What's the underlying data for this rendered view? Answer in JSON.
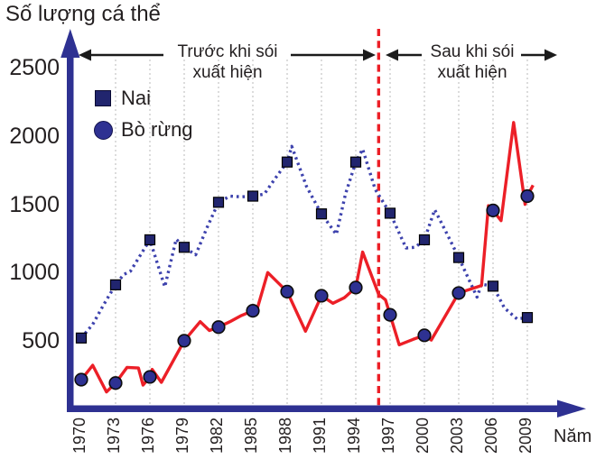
{
  "title": "Số lượng cá thể",
  "x_axis_label": "Năm",
  "legend": [
    {
      "label": "Nai",
      "marker": "square"
    },
    {
      "label": "Bò rừng",
      "marker": "circle"
    }
  ],
  "annotations": {
    "before": {
      "line1": "Trước khi sói",
      "line2": "xuất hiện"
    },
    "after": {
      "line1": "Sau khi sói",
      "line2": "xuất hiện"
    }
  },
  "colors": {
    "axis_blue": "#2e3192",
    "elk_dotted_blue": "#3d42ad",
    "square_marker": "#21256e",
    "circle_marker": "#2e3192",
    "red": "#ec1f27",
    "grid": "#c4c4c4",
    "text": "#231f20"
  },
  "chart_data": {
    "type": "line",
    "title": "Số lượng cá thể",
    "xlabel": "Năm",
    "ylabel": "Số lượng cá thể",
    "ylim": [
      0,
      2500
    ],
    "y_ticks": [
      500,
      1000,
      1500,
      2000,
      2500
    ],
    "x_ticks": [
      1970,
      1973,
      1976,
      1979,
      1982,
      1985,
      1988,
      1991,
      1994,
      1997,
      2000,
      2003,
      2006,
      2009
    ],
    "grid": "vertical-dotted",
    "legend_position": "top-left",
    "divider": {
      "x": 1996,
      "style": "red-dashed",
      "label_before": "Trước khi sói xuất hiện",
      "label_after": "Sau khi sói xuất hiện"
    },
    "series": [
      {
        "name": "Nai",
        "marker": "square",
        "line_style": "dotted",
        "color": "#3d42ad",
        "marker_years": [
          1970,
          1973,
          1976,
          1979,
          1982,
          1985,
          1988,
          1991,
          1994,
          1997,
          2000,
          2003,
          2006,
          2009
        ],
        "marker_values": [
          520,
          910,
          1240,
          1185,
          1515,
          1560,
          1810,
          1430,
          1810,
          1435,
          1240,
          1110,
          900,
          670
        ],
        "line_points": [
          [
            1970,
            520
          ],
          [
            1971,
            620
          ],
          [
            1972,
            770
          ],
          [
            1973,
            910
          ],
          [
            1973.7,
            985
          ],
          [
            1974.3,
            1010
          ],
          [
            1976,
            1240
          ],
          [
            1977.3,
            895
          ],
          [
            1978.3,
            1245
          ],
          [
            1979,
            1185
          ],
          [
            1980,
            1130
          ],
          [
            1981,
            1330
          ],
          [
            1982,
            1515
          ],
          [
            1983,
            1560
          ],
          [
            1984,
            1555
          ],
          [
            1985,
            1560
          ],
          [
            1986,
            1575
          ],
          [
            1987,
            1695
          ],
          [
            1988,
            1810
          ],
          [
            1988.4,
            1925
          ],
          [
            1989.7,
            1630
          ],
          [
            1991,
            1430
          ],
          [
            1992.3,
            1280
          ],
          [
            1993.1,
            1575
          ],
          [
            1994,
            1810
          ],
          [
            1994.6,
            1905
          ],
          [
            1995.7,
            1610
          ],
          [
            1997,
            1435
          ],
          [
            1998.4,
            1180
          ],
          [
            1999.2,
            1185
          ],
          [
            2000,
            1240
          ],
          [
            2000.9,
            1460
          ],
          [
            2002,
            1280
          ],
          [
            2003,
            1110
          ],
          [
            2004.6,
            820
          ],
          [
            2005,
            915
          ],
          [
            2006,
            900
          ],
          [
            2007,
            740
          ],
          [
            2008.1,
            660
          ],
          [
            2009,
            670
          ],
          [
            2009.4,
            690
          ]
        ]
      },
      {
        "name": "Bò rừng",
        "marker": "circle",
        "line_style": "solid",
        "color": "#ec1f27",
        "marker_years": [
          1970,
          1973,
          1976,
          1979,
          1982,
          1985,
          1988,
          1991,
          1994,
          1997,
          2000,
          2003,
          2006,
          2009
        ],
        "marker_values": [
          215,
          190,
          235,
          500,
          600,
          720,
          860,
          830,
          890,
          690,
          540,
          850,
          1455,
          1560
        ],
        "line_points": [
          [
            1970,
            215
          ],
          [
            1971,
            320
          ],
          [
            1972.2,
            125
          ],
          [
            1973,
            190
          ],
          [
            1974,
            305
          ],
          [
            1975,
            300
          ],
          [
            1975.4,
            175
          ],
          [
            1976,
            235
          ],
          [
            1976.2,
            290
          ],
          [
            1977,
            195
          ],
          [
            1979,
            500
          ],
          [
            1980.4,
            640
          ],
          [
            1981.2,
            575
          ],
          [
            1982,
            600
          ],
          [
            1983,
            640
          ],
          [
            1984,
            685
          ],
          [
            1985,
            720
          ],
          [
            1985.4,
            740
          ],
          [
            1986.3,
            1000
          ],
          [
            1988,
            860
          ],
          [
            1989.6,
            570
          ],
          [
            1991,
            830
          ],
          [
            1992,
            775
          ],
          [
            1993,
            815
          ],
          [
            1994,
            890
          ],
          [
            1994.6,
            1150
          ],
          [
            1996,
            840
          ],
          [
            1996.6,
            800
          ],
          [
            1997,
            690
          ],
          [
            1997.8,
            470
          ],
          [
            1999,
            510
          ],
          [
            2000,
            540
          ],
          [
            2000.6,
            505
          ],
          [
            2003,
            850
          ],
          [
            2005,
            905
          ],
          [
            2005.6,
            1490
          ],
          [
            2006,
            1455
          ],
          [
            2006.7,
            1380
          ],
          [
            2007.8,
            2100
          ],
          [
            2008.8,
            1500
          ],
          [
            2009,
            1560
          ],
          [
            2009.5,
            1640
          ]
        ]
      }
    ]
  }
}
